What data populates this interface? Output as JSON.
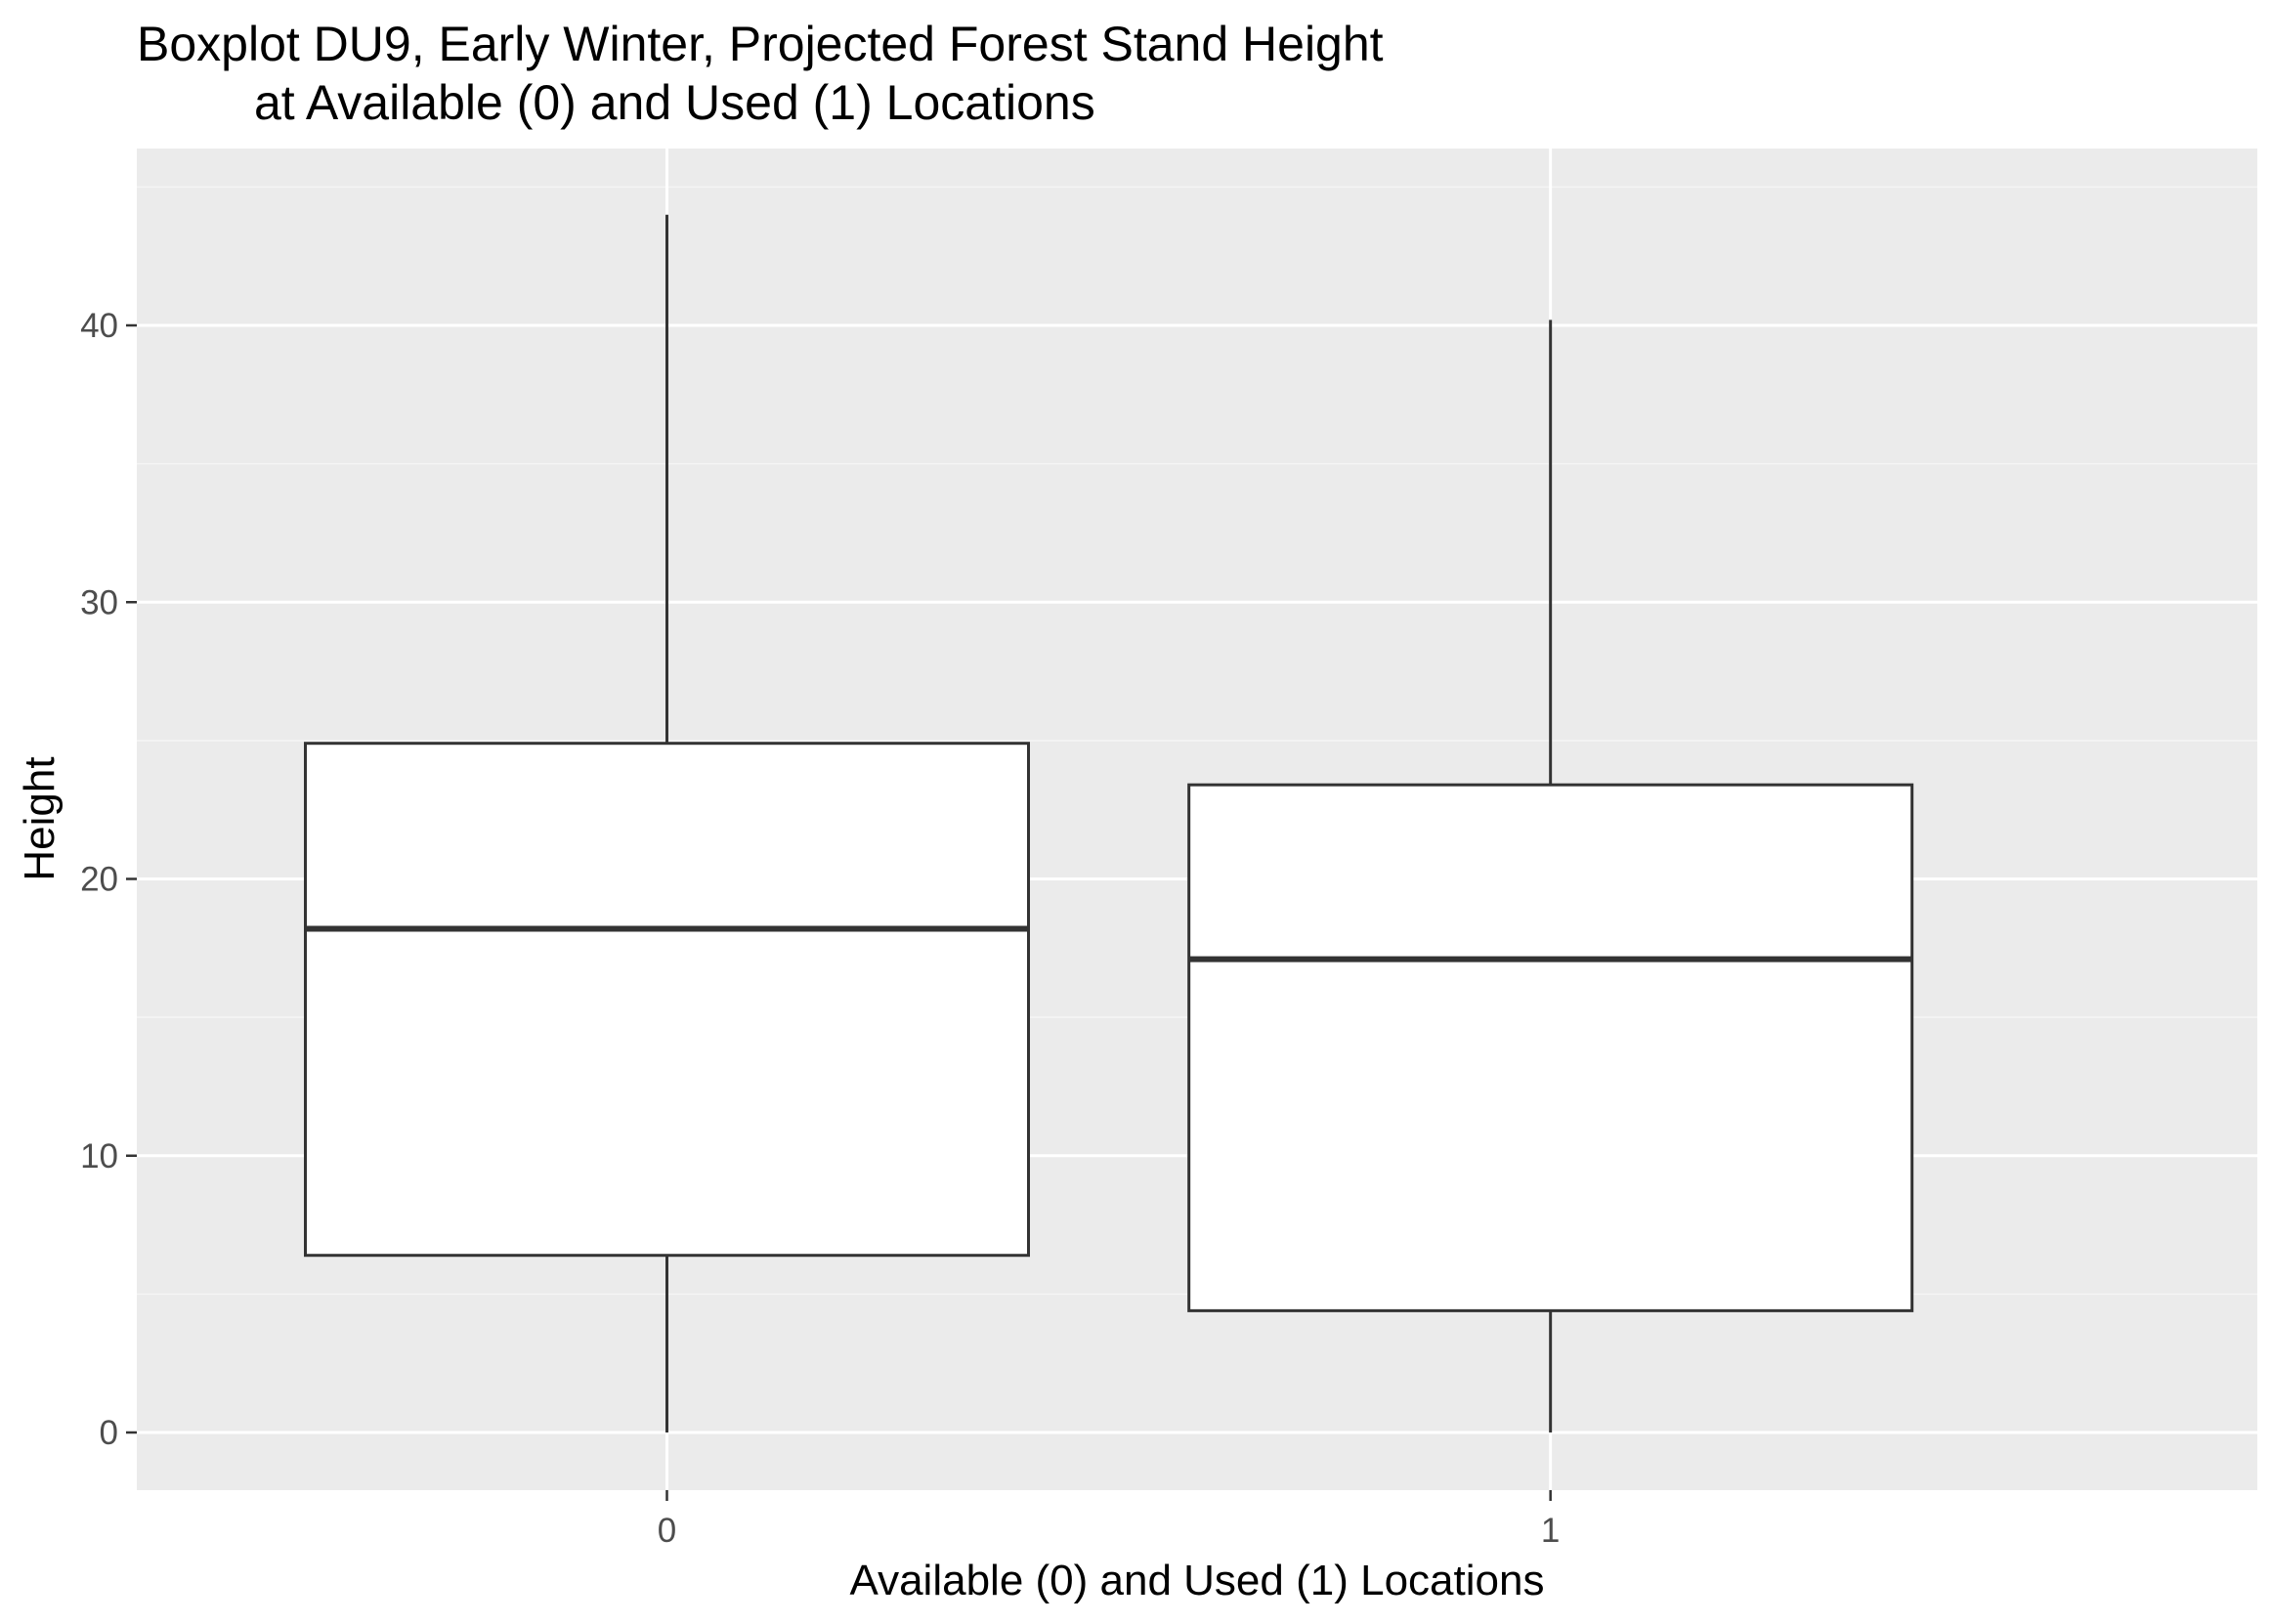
{
  "chart_data": {
    "type": "boxplot",
    "title": [
      "Boxplot DU9, Early Winter, Projected Forest Stand Height",
      "at Available (0) and Used (1) Locations"
    ],
    "xlabel": "Available (0) and Used (1) Locations",
    "ylabel": "Height",
    "categories": [
      "0",
      "1"
    ],
    "boxes": [
      {
        "category": "0",
        "min": 0,
        "q1": 6.4,
        "median": 18.2,
        "q3": 24.9,
        "max": 44.0
      },
      {
        "category": "1",
        "min": 0,
        "q1": 4.4,
        "median": 17.1,
        "q3": 23.4,
        "max": 40.2
      }
    ],
    "yticks": [
      0,
      10,
      20,
      30,
      40
    ],
    "ylim": [
      -2.2,
      46.2
    ],
    "grid": true,
    "colors": {
      "panel_background": "#ebebeb",
      "grid_major": "#ffffff",
      "grid_minor": "#f5f5f5",
      "box_fill": "#ffffff",
      "box_line": "#333333",
      "tick_label": "#4d4d4d",
      "axis_tick": "#333333"
    }
  }
}
